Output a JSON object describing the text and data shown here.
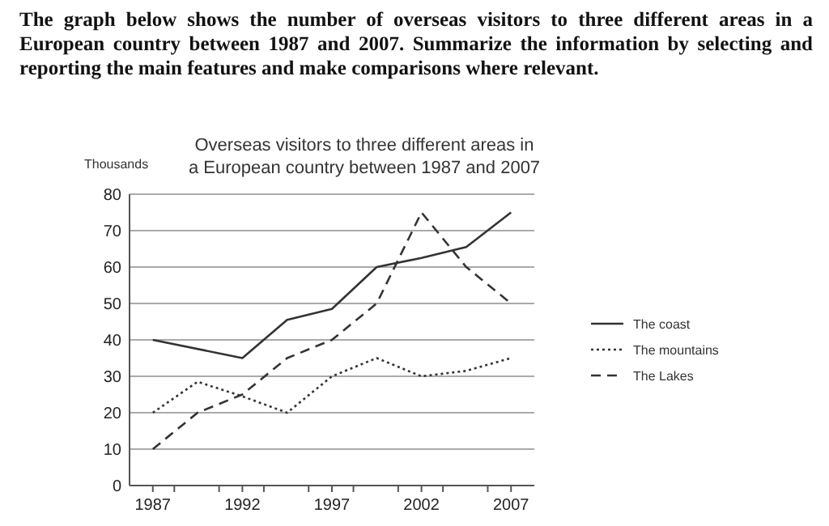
{
  "chart_data": {
    "type": "line",
    "title": "Overseas visitors to three different areas in\na European country between 1987 and 2007",
    "ylabel": "Thousands",
    "annotations": [
      "The graph below shows the number of overseas visitors to three different areas in a European country between 1987 and 2007. Summarize the information by selecting and reporting the main features and make comparisons where relevant."
    ],
    "x": [
      1987,
      1989.5,
      1992,
      1994.5,
      1997,
      1999.5,
      2002,
      2004.5,
      2007
    ],
    "series": [
      {
        "name": "The coast",
        "color": "#333333",
        "line_style": "solid",
        "x": [
          1987,
          1992,
          1994.5,
          1997,
          1999.5,
          2002,
          2004.5,
          2007
        ],
        "values": [
          40,
          35,
          45.5,
          48.5,
          60,
          62.5,
          65.5,
          75
        ]
      },
      {
        "name": "The mountains",
        "color": "#333333",
        "line_style": "dotted",
        "values": [
          20,
          28.5,
          24.5,
          20,
          30,
          35,
          30,
          31.5,
          35
        ]
      },
      {
        "name": "The Lakes",
        "color": "#333333",
        "line_style": "dashed",
        "x": [
          1987,
          1989.5,
          1992,
          1994.5,
          1997,
          1999.5,
          2002,
          2004.5,
          2007
        ],
        "values": [
          10,
          20,
          25,
          35,
          40,
          50,
          75,
          60,
          50
        ]
      }
    ],
    "xlim": [
      1985.7,
      2008.3
    ],
    "xticks": [
      1987,
      {
        "value": 1988.2,
        "label": null
      },
      {
        "value": 1990.7,
        "label": null
      },
      1992,
      {
        "value": 1993.2,
        "label": null
      },
      {
        "value": 1995.7,
        "label": null
      },
      1997,
      {
        "value": 1998.2,
        "label": null
      },
      {
        "value": 2000.7,
        "label": null
      },
      2002,
      {
        "value": 2003.2,
        "label": null
      },
      {
        "value": 2005.7,
        "label": null
      },
      2007
    ],
    "ylim": [
      0,
      80
    ],
    "yticks": [
      0,
      10,
      20,
      30,
      40,
      50,
      60,
      70,
      80
    ],
    "grid": "y",
    "legend": "right",
    "marker": "none"
  }
}
